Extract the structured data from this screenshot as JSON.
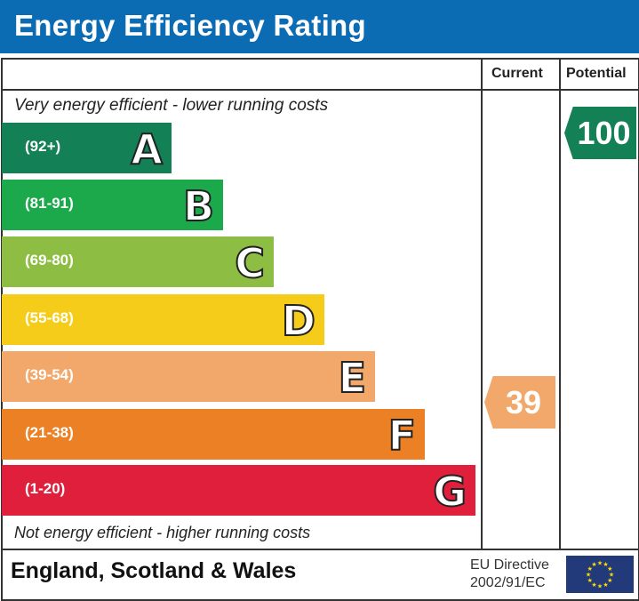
{
  "title": "Energy Efficiency Rating",
  "columns": {
    "current": "Current",
    "potential": "Potential"
  },
  "top_caption": "Very energy efficient - lower running costs",
  "bottom_caption": "Not energy efficient - higher running costs",
  "bands": [
    {
      "letter": "A",
      "range": "(92+)",
      "color": "#138056"
    },
    {
      "letter": "B",
      "range": "(81-91)",
      "color": "#1ba94b"
    },
    {
      "letter": "C",
      "range": "(69-80)",
      "color": "#8dbe43"
    },
    {
      "letter": "D",
      "range": "(55-68)",
      "color": "#f5cc1a"
    },
    {
      "letter": "E",
      "range": "(39-54)",
      "color": "#f2a86a"
    },
    {
      "letter": "F",
      "range": "(21-38)",
      "color": "#ec8025"
    },
    {
      "letter": "G",
      "range": "(1-20)",
      "color": "#e01f3d"
    }
  ],
  "current": {
    "value": "39",
    "band": "E",
    "color": "#f2a86a"
  },
  "potential": {
    "value": "100",
    "band": "A",
    "color": "#138056"
  },
  "footer": {
    "region": "England, Scotland & Wales",
    "directive_line1": "EU Directive",
    "directive_line2": "2002/91/EC",
    "flag_icon": "eu-flag-icon"
  }
}
